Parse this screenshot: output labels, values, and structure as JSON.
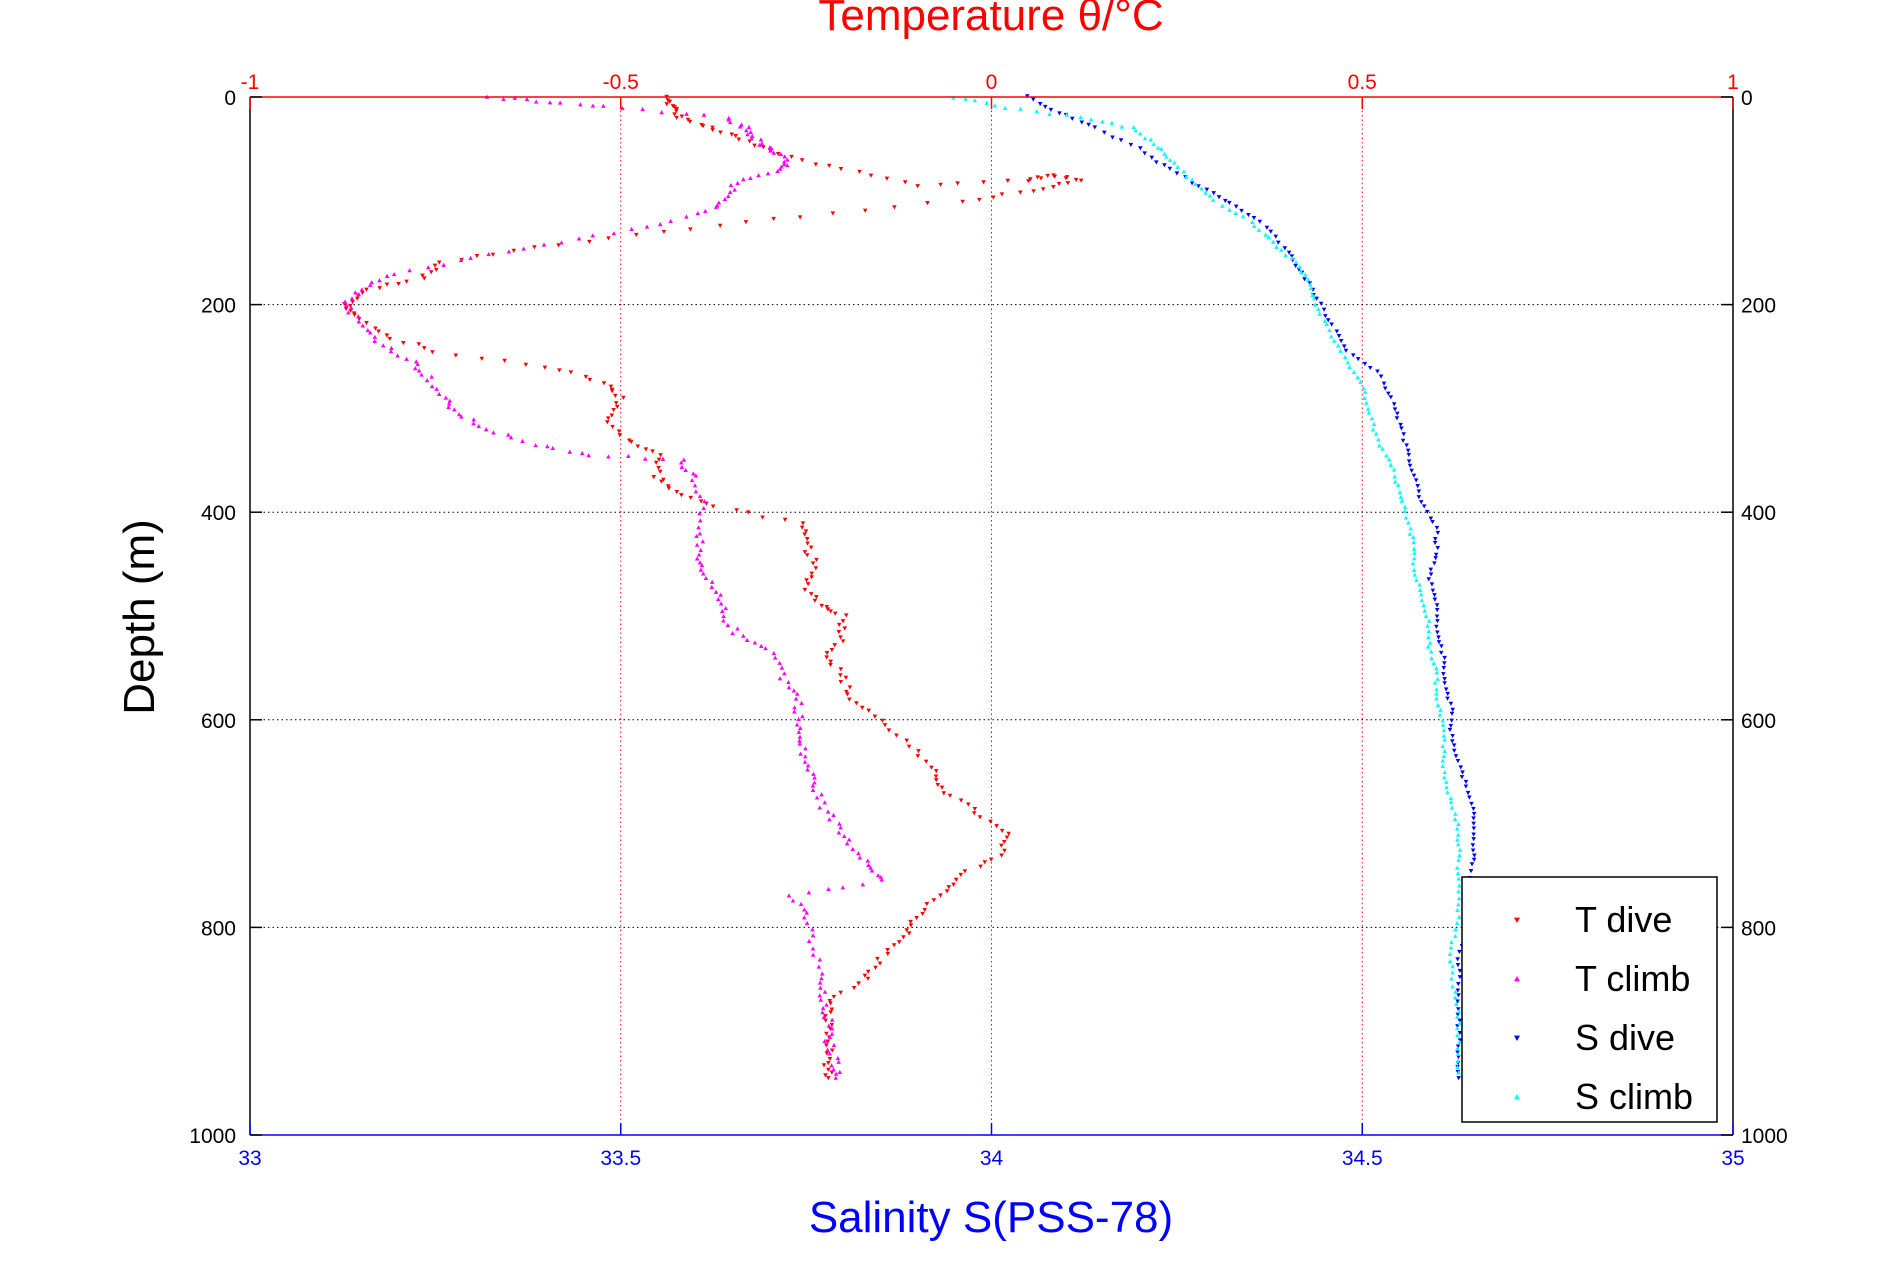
{
  "chart_data": {
    "type": "scatter",
    "title": "",
    "top_axis": {
      "label": "Temperature θ/°C",
      "range": [
        -1,
        1
      ],
      "ticks": [
        -1,
        -0.5,
        0,
        0.5,
        1
      ],
      "tick_labels": [
        "-1",
        "-0.5",
        "0",
        "0.5",
        "1"
      ],
      "color": "#ff0000",
      "grid": true
    },
    "bottom_axis": {
      "label": "Salinity S(PSS-78)",
      "range": [
        33,
        35
      ],
      "ticks": [
        33,
        33.5,
        34,
        34.5,
        35
      ],
      "tick_labels": [
        "33",
        "33.5",
        "34",
        "34.5",
        "35"
      ],
      "color": "#0000ff",
      "grid": false
    },
    "y_axis": {
      "label": "Depth (m)",
      "range": [
        0,
        1000
      ],
      "reversed": true,
      "ticks": [
        0,
        200,
        400,
        600,
        800,
        1000
      ],
      "tick_labels": [
        "0",
        "200",
        "400",
        "600",
        "800",
        "1000"
      ],
      "grid": true
    },
    "legend_position": "bottom-right",
    "series": [
      {
        "name": "T dive",
        "axis": "temperature",
        "color": "#ff0000",
        "marker": "triangle-down",
        "points": [
          [
            -0.44,
            0
          ],
          [
            -0.43,
            10
          ],
          [
            -0.42,
            20
          ],
          [
            -0.38,
            30
          ],
          [
            -0.34,
            40
          ],
          [
            -0.29,
            55
          ],
          [
            -0.2,
            70
          ],
          [
            -0.1,
            85
          ],
          [
            0.05,
            80
          ],
          [
            0.08,
            75
          ],
          [
            0.12,
            80
          ],
          [
            0.06,
            90
          ],
          [
            -0.04,
            100
          ],
          [
            -0.26,
            115
          ],
          [
            -0.44,
            130
          ],
          [
            -0.62,
            145
          ],
          [
            -0.74,
            160
          ],
          [
            -0.77,
            175
          ],
          [
            -0.84,
            185
          ],
          [
            -0.87,
            200
          ],
          [
            -0.86,
            210
          ],
          [
            -0.82,
            230
          ],
          [
            -0.75,
            245
          ],
          [
            -0.6,
            260
          ],
          [
            -0.52,
            275
          ],
          [
            -0.5,
            290
          ],
          [
            -0.52,
            310
          ],
          [
            -0.49,
            330
          ],
          [
            -0.45,
            345
          ],
          [
            -0.45,
            365
          ],
          [
            -0.43,
            380
          ],
          [
            -0.37,
            395
          ],
          [
            -0.26,
            410
          ],
          [
            -0.25,
            430
          ],
          [
            -0.24,
            450
          ],
          [
            -0.25,
            470
          ],
          [
            -0.23,
            490
          ],
          [
            -0.2,
            500
          ],
          [
            -0.2,
            520
          ],
          [
            -0.22,
            540
          ],
          [
            -0.2,
            560
          ],
          [
            -0.19,
            580
          ],
          [
            -0.15,
            600
          ],
          [
            -0.11,
            625
          ],
          [
            -0.08,
            650
          ],
          [
            -0.06,
            670
          ],
          [
            -0.02,
            690
          ],
          [
            0.02,
            710
          ],
          [
            0.01,
            730
          ],
          [
            -0.04,
            750
          ],
          [
            -0.07,
            770
          ],
          [
            -0.1,
            790
          ],
          [
            -0.12,
            810
          ],
          [
            -0.15,
            830
          ],
          [
            -0.17,
            850
          ],
          [
            -0.22,
            870
          ],
          [
            -0.22,
            890
          ],
          [
            -0.22,
            910
          ],
          [
            -0.22,
            930
          ],
          [
            -0.22,
            945
          ]
        ]
      },
      {
        "name": "T climb",
        "axis": "temperature",
        "color": "#ff00ff",
        "marker": "triangle-up",
        "points": [
          [
            -0.68,
            0
          ],
          [
            -0.6,
            5
          ],
          [
            -0.5,
            10
          ],
          [
            -0.36,
            20
          ],
          [
            -0.33,
            30
          ],
          [
            -0.32,
            40
          ],
          [
            -0.3,
            50
          ],
          [
            -0.28,
            60
          ],
          [
            -0.28,
            70
          ],
          [
            -0.34,
            80
          ],
          [
            -0.36,
            95
          ],
          [
            -0.38,
            110
          ],
          [
            -0.46,
            125
          ],
          [
            -0.58,
            140
          ],
          [
            -0.7,
            155
          ],
          [
            -0.8,
            170
          ],
          [
            -0.85,
            185
          ],
          [
            -0.87,
            200
          ],
          [
            -0.85,
            220
          ],
          [
            -0.82,
            240
          ],
          [
            -0.78,
            255
          ],
          [
            -0.76,
            270
          ],
          [
            -0.74,
            290
          ],
          [
            -0.72,
            305
          ],
          [
            -0.68,
            320
          ],
          [
            -0.62,
            335
          ],
          [
            -0.54,
            345
          ],
          [
            -0.42,
            350
          ],
          [
            -0.4,
            365
          ],
          [
            -0.39,
            390
          ],
          [
            -0.39,
            420
          ],
          [
            -0.4,
            440
          ],
          [
            -0.39,
            460
          ],
          [
            -0.37,
            480
          ],
          [
            -0.36,
            500
          ],
          [
            -0.34,
            520
          ],
          [
            -0.29,
            535
          ],
          [
            -0.28,
            560
          ],
          [
            -0.26,
            580
          ],
          [
            -0.26,
            600
          ],
          [
            -0.26,
            620
          ],
          [
            -0.25,
            640
          ],
          [
            -0.24,
            660
          ],
          [
            -0.23,
            680
          ],
          [
            -0.21,
            700
          ],
          [
            -0.19,
            720
          ],
          [
            -0.16,
            740
          ],
          [
            -0.15,
            755
          ],
          [
            -0.27,
            770
          ],
          [
            -0.25,
            790
          ],
          [
            -0.24,
            820
          ],
          [
            -0.23,
            850
          ],
          [
            -0.23,
            870
          ],
          [
            -0.22,
            890
          ],
          [
            -0.22,
            910
          ],
          [
            -0.21,
            930
          ],
          [
            -0.21,
            945
          ]
        ]
      },
      {
        "name": "S dive",
        "axis": "salinity",
        "color": "#0000ff",
        "marker": "triangle-down",
        "points": [
          [
            34.05,
            0
          ],
          [
            34.09,
            15
          ],
          [
            34.14,
            30
          ],
          [
            34.2,
            50
          ],
          [
            34.24,
            70
          ],
          [
            34.29,
            90
          ],
          [
            34.33,
            105
          ],
          [
            34.37,
            125
          ],
          [
            34.4,
            150
          ],
          [
            34.42,
            170
          ],
          [
            34.44,
            195
          ],
          [
            34.46,
            220
          ],
          [
            34.48,
            245
          ],
          [
            34.52,
            265
          ],
          [
            34.54,
            290
          ],
          [
            34.55,
            315
          ],
          [
            34.56,
            340
          ],
          [
            34.57,
            365
          ],
          [
            34.58,
            390
          ],
          [
            34.6,
            415
          ],
          [
            34.6,
            440
          ],
          [
            34.59,
            465
          ],
          [
            34.6,
            490
          ],
          [
            34.6,
            515
          ],
          [
            34.61,
            540
          ],
          [
            34.61,
            565
          ],
          [
            34.62,
            590
          ],
          [
            34.62,
            615
          ],
          [
            34.63,
            640
          ],
          [
            34.64,
            665
          ],
          [
            34.65,
            690
          ],
          [
            34.65,
            715
          ],
          [
            34.65,
            740
          ],
          [
            34.64,
            770
          ],
          [
            34.64,
            800
          ],
          [
            34.63,
            830
          ],
          [
            34.63,
            860
          ],
          [
            34.63,
            890
          ],
          [
            34.63,
            920
          ],
          [
            34.63,
            945
          ]
        ]
      },
      {
        "name": "S climb",
        "axis": "salinity",
        "color": "#00ffff",
        "marker": "triangle-up",
        "points": [
          [
            33.95,
            0
          ],
          [
            34.02,
            10
          ],
          [
            34.12,
            20
          ],
          [
            34.19,
            30
          ],
          [
            34.22,
            45
          ],
          [
            34.24,
            60
          ],
          [
            34.27,
            80
          ],
          [
            34.3,
            100
          ],
          [
            34.35,
            120
          ],
          [
            34.38,
            140
          ],
          [
            34.41,
            160
          ],
          [
            34.43,
            180
          ],
          [
            34.44,
            205
          ],
          [
            34.46,
            230
          ],
          [
            34.48,
            255
          ],
          [
            34.5,
            280
          ],
          [
            34.51,
            305
          ],
          [
            34.52,
            330
          ],
          [
            34.54,
            355
          ],
          [
            34.55,
            380
          ],
          [
            34.56,
            405
          ],
          [
            34.57,
            430
          ],
          [
            34.57,
            455
          ],
          [
            34.58,
            480
          ],
          [
            34.59,
            505
          ],
          [
            34.59,
            530
          ],
          [
            34.6,
            555
          ],
          [
            34.6,
            580
          ],
          [
            34.61,
            605
          ],
          [
            34.61,
            630
          ],
          [
            34.61,
            655
          ],
          [
            34.62,
            680
          ],
          [
            34.63,
            705
          ],
          [
            34.63,
            730
          ],
          [
            34.63,
            760
          ],
          [
            34.63,
            790
          ],
          [
            34.62,
            820
          ],
          [
            34.62,
            850
          ],
          [
            34.63,
            880
          ],
          [
            34.63,
            910
          ],
          [
            34.63,
            940
          ]
        ]
      }
    ]
  }
}
